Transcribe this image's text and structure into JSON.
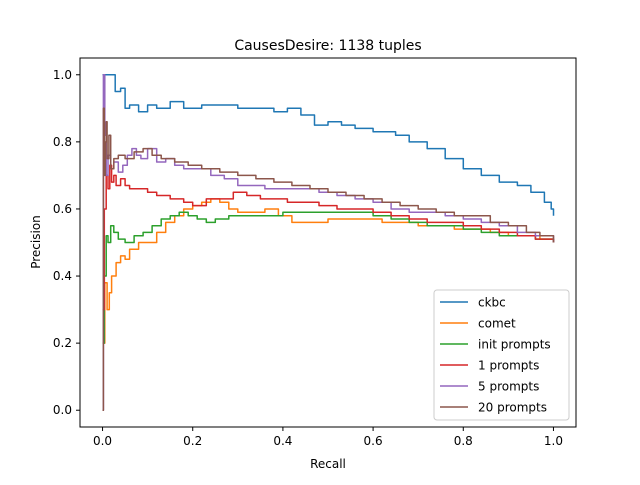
{
  "chart_data": {
    "type": "line",
    "title": "CausesDesire: 1138 tuples",
    "xlabel": "Recall",
    "ylabel": "Precision",
    "xlim": [
      -0.05,
      1.05
    ],
    "ylim": [
      -0.05,
      1.05
    ],
    "xticks": [
      "0.0",
      "0.2",
      "0.4",
      "0.6",
      "0.8",
      "1.0"
    ],
    "yticks": [
      "0.0",
      "0.2",
      "0.4",
      "0.6",
      "0.8",
      "1.0"
    ],
    "grid": false,
    "legend_position": "lower right",
    "series": [
      {
        "name": "ckbc",
        "color": "#1f77b4",
        "points": [
          [
            0.0,
            1.0
          ],
          [
            0.003,
            1.0
          ],
          [
            0.025,
            1.0
          ],
          [
            0.028,
            0.95
          ],
          [
            0.04,
            0.96
          ],
          [
            0.05,
            0.9
          ],
          [
            0.06,
            0.91
          ],
          [
            0.08,
            0.89
          ],
          [
            0.1,
            0.91
          ],
          [
            0.12,
            0.9
          ],
          [
            0.15,
            0.92
          ],
          [
            0.18,
            0.9
          ],
          [
            0.22,
            0.91
          ],
          [
            0.26,
            0.91
          ],
          [
            0.3,
            0.9
          ],
          [
            0.34,
            0.9
          ],
          [
            0.38,
            0.89
          ],
          [
            0.41,
            0.9
          ],
          [
            0.44,
            0.88
          ],
          [
            0.47,
            0.85
          ],
          [
            0.5,
            0.86
          ],
          [
            0.53,
            0.85
          ],
          [
            0.56,
            0.84
          ],
          [
            0.6,
            0.83
          ],
          [
            0.62,
            0.83
          ],
          [
            0.65,
            0.82
          ],
          [
            0.68,
            0.8
          ],
          [
            0.72,
            0.78
          ],
          [
            0.76,
            0.75
          ],
          [
            0.8,
            0.72
          ],
          [
            0.84,
            0.7
          ],
          [
            0.88,
            0.68
          ],
          [
            0.92,
            0.67
          ],
          [
            0.95,
            0.65
          ],
          [
            0.98,
            0.62
          ],
          [
            0.995,
            0.6
          ],
          [
            1.0,
            0.58
          ]
        ]
      },
      {
        "name": "comet",
        "color": "#ff7f0e",
        "points": [
          [
            0.0,
            0.2
          ],
          [
            0.005,
            0.38
          ],
          [
            0.01,
            0.3
          ],
          [
            0.015,
            0.35
          ],
          [
            0.02,
            0.4
          ],
          [
            0.03,
            0.44
          ],
          [
            0.04,
            0.46
          ],
          [
            0.05,
            0.45
          ],
          [
            0.06,
            0.48
          ],
          [
            0.08,
            0.5
          ],
          [
            0.1,
            0.5
          ],
          [
            0.12,
            0.53
          ],
          [
            0.14,
            0.56
          ],
          [
            0.16,
            0.58
          ],
          [
            0.18,
            0.6
          ],
          [
            0.2,
            0.61
          ],
          [
            0.22,
            0.62
          ],
          [
            0.24,
            0.63
          ],
          [
            0.26,
            0.62
          ],
          [
            0.28,
            0.6
          ],
          [
            0.3,
            0.59
          ],
          [
            0.33,
            0.59
          ],
          [
            0.36,
            0.6
          ],
          [
            0.39,
            0.58
          ],
          [
            0.42,
            0.56
          ],
          [
            0.46,
            0.56
          ],
          [
            0.5,
            0.57
          ],
          [
            0.54,
            0.57
          ],
          [
            0.58,
            0.57
          ],
          [
            0.62,
            0.56
          ],
          [
            0.66,
            0.56
          ],
          [
            0.7,
            0.55
          ],
          [
            0.74,
            0.55
          ],
          [
            0.78,
            0.54
          ],
          [
            0.82,
            0.54
          ],
          [
            0.86,
            0.53
          ],
          [
            0.9,
            0.52
          ],
          [
            0.94,
            0.52
          ],
          [
            0.97,
            0.51
          ],
          [
            1.0,
            0.5
          ]
        ]
      },
      {
        "name": "init prompts",
        "color": "#2ca02c",
        "points": [
          [
            0.0,
            0.2
          ],
          [
            0.004,
            0.4
          ],
          [
            0.008,
            0.52
          ],
          [
            0.012,
            0.5
          ],
          [
            0.018,
            0.55
          ],
          [
            0.025,
            0.53
          ],
          [
            0.035,
            0.51
          ],
          [
            0.05,
            0.5
          ],
          [
            0.07,
            0.52
          ],
          [
            0.09,
            0.53
          ],
          [
            0.11,
            0.55
          ],
          [
            0.13,
            0.57
          ],
          [
            0.15,
            0.58
          ],
          [
            0.17,
            0.59
          ],
          [
            0.19,
            0.58
          ],
          [
            0.21,
            0.57
          ],
          [
            0.23,
            0.56
          ],
          [
            0.25,
            0.57
          ],
          [
            0.28,
            0.58
          ],
          [
            0.31,
            0.58
          ],
          [
            0.34,
            0.58
          ],
          [
            0.37,
            0.58
          ],
          [
            0.4,
            0.59
          ],
          [
            0.44,
            0.59
          ],
          [
            0.48,
            0.59
          ],
          [
            0.52,
            0.59
          ],
          [
            0.56,
            0.59
          ],
          [
            0.6,
            0.58
          ],
          [
            0.64,
            0.57
          ],
          [
            0.68,
            0.56
          ],
          [
            0.72,
            0.55
          ],
          [
            0.76,
            0.55
          ],
          [
            0.8,
            0.54
          ],
          [
            0.84,
            0.53
          ],
          [
            0.88,
            0.52
          ],
          [
            0.92,
            0.52
          ],
          [
            0.96,
            0.51
          ],
          [
            1.0,
            0.5
          ]
        ]
      },
      {
        "name": "1 prompts",
        "color": "#d62728",
        "points": [
          [
            0.0,
            0.3
          ],
          [
            0.004,
            0.6
          ],
          [
            0.008,
            0.7
          ],
          [
            0.012,
            0.66
          ],
          [
            0.016,
            0.73
          ],
          [
            0.02,
            0.68
          ],
          [
            0.025,
            0.7
          ],
          [
            0.03,
            0.67
          ],
          [
            0.04,
            0.69
          ],
          [
            0.05,
            0.67
          ],
          [
            0.06,
            0.66
          ],
          [
            0.08,
            0.66
          ],
          [
            0.1,
            0.65
          ],
          [
            0.12,
            0.64
          ],
          [
            0.15,
            0.63
          ],
          [
            0.18,
            0.62
          ],
          [
            0.2,
            0.61
          ],
          [
            0.23,
            0.63
          ],
          [
            0.26,
            0.63
          ],
          [
            0.29,
            0.65
          ],
          [
            0.32,
            0.64
          ],
          [
            0.35,
            0.63
          ],
          [
            0.38,
            0.63
          ],
          [
            0.41,
            0.62
          ],
          [
            0.44,
            0.62
          ],
          [
            0.48,
            0.61
          ],
          [
            0.52,
            0.6
          ],
          [
            0.56,
            0.6
          ],
          [
            0.6,
            0.59
          ],
          [
            0.64,
            0.58
          ],
          [
            0.68,
            0.57
          ],
          [
            0.72,
            0.56
          ],
          [
            0.76,
            0.56
          ],
          [
            0.8,
            0.55
          ],
          [
            0.84,
            0.54
          ],
          [
            0.88,
            0.53
          ],
          [
            0.92,
            0.52
          ],
          [
            0.96,
            0.51
          ],
          [
            1.0,
            0.5
          ]
        ]
      },
      {
        "name": "5 prompts",
        "color": "#9467bd",
        "points": [
          [
            0.0,
            0.0
          ],
          [
            0.002,
            1.0
          ],
          [
            0.005,
            0.82
          ],
          [
            0.008,
            0.7
          ],
          [
            0.012,
            0.76
          ],
          [
            0.018,
            0.72
          ],
          [
            0.025,
            0.74
          ],
          [
            0.035,
            0.71
          ],
          [
            0.045,
            0.73
          ],
          [
            0.055,
            0.76
          ],
          [
            0.065,
            0.78
          ],
          [
            0.075,
            0.76
          ],
          [
            0.085,
            0.75
          ],
          [
            0.1,
            0.78
          ],
          [
            0.12,
            0.74
          ],
          [
            0.14,
            0.75
          ],
          [
            0.16,
            0.73
          ],
          [
            0.18,
            0.72
          ],
          [
            0.21,
            0.72
          ],
          [
            0.24,
            0.7
          ],
          [
            0.27,
            0.69
          ],
          [
            0.3,
            0.67
          ],
          [
            0.33,
            0.67
          ],
          [
            0.36,
            0.66
          ],
          [
            0.4,
            0.66
          ],
          [
            0.44,
            0.66
          ],
          [
            0.48,
            0.65
          ],
          [
            0.52,
            0.64
          ],
          [
            0.56,
            0.63
          ],
          [
            0.6,
            0.62
          ],
          [
            0.64,
            0.6
          ],
          [
            0.68,
            0.59
          ],
          [
            0.72,
            0.59
          ],
          [
            0.76,
            0.58
          ],
          [
            0.8,
            0.57
          ],
          [
            0.84,
            0.56
          ],
          [
            0.88,
            0.55
          ],
          [
            0.92,
            0.53
          ],
          [
            0.96,
            0.52
          ],
          [
            1.0,
            0.5
          ]
        ]
      },
      {
        "name": "20 prompts",
        "color": "#8c564b",
        "points": [
          [
            0.0,
            0.0
          ],
          [
            0.002,
            0.9
          ],
          [
            0.004,
            0.7
          ],
          [
            0.006,
            0.8
          ],
          [
            0.008,
            0.86
          ],
          [
            0.01,
            0.75
          ],
          [
            0.014,
            0.82
          ],
          [
            0.018,
            0.72
          ],
          [
            0.025,
            0.75
          ],
          [
            0.035,
            0.76
          ],
          [
            0.05,
            0.75
          ],
          [
            0.07,
            0.77
          ],
          [
            0.09,
            0.78
          ],
          [
            0.11,
            0.76
          ],
          [
            0.13,
            0.75
          ],
          [
            0.16,
            0.74
          ],
          [
            0.19,
            0.73
          ],
          [
            0.22,
            0.72
          ],
          [
            0.26,
            0.71
          ],
          [
            0.3,
            0.7
          ],
          [
            0.34,
            0.69
          ],
          [
            0.38,
            0.68
          ],
          [
            0.42,
            0.67
          ],
          [
            0.46,
            0.66
          ],
          [
            0.5,
            0.65
          ],
          [
            0.54,
            0.64
          ],
          [
            0.58,
            0.63
          ],
          [
            0.62,
            0.62
          ],
          [
            0.66,
            0.61
          ],
          [
            0.7,
            0.6
          ],
          [
            0.74,
            0.59
          ],
          [
            0.78,
            0.58
          ],
          [
            0.82,
            0.58
          ],
          [
            0.86,
            0.56
          ],
          [
            0.9,
            0.55
          ],
          [
            0.94,
            0.53
          ],
          [
            0.97,
            0.52
          ],
          [
            1.0,
            0.5
          ]
        ]
      }
    ]
  }
}
